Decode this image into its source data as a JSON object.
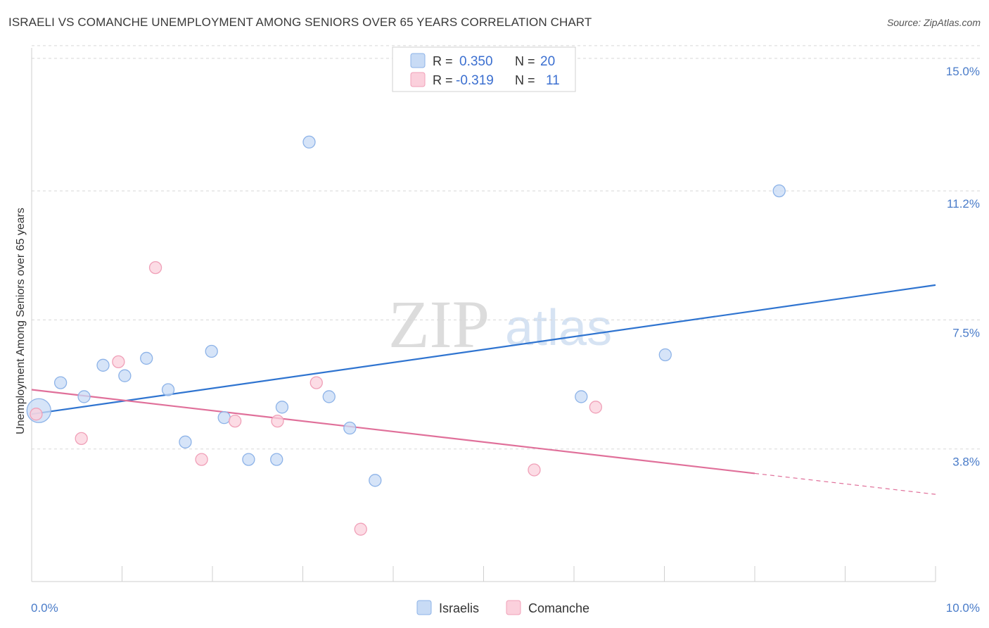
{
  "header": {
    "title": "ISRAELI VS COMANCHE UNEMPLOYMENT AMONG SENIORS OVER 65 YEARS CORRELATION CHART",
    "source": "Source: ZipAtlas.com"
  },
  "watermark": {
    "zip": "ZIP",
    "atlas": "atlas"
  },
  "colors": {
    "israelis_fill": "#c8dbf5",
    "israelis_stroke": "#8db3e8",
    "israelis_line": "#2f74d0",
    "comanche_fill": "#fbd0dc",
    "comanche_stroke": "#f0a0b8",
    "comanche_line": "#e0709a",
    "tick_text": "#4a7cc9",
    "grid": "#d8d8d8"
  },
  "legend": {
    "rows": [
      {
        "r_label": "R =",
        "r_value": "0.350",
        "n_label": "N =",
        "n_value": "20"
      },
      {
        "r_label": "R =",
        "r_value": "-0.319",
        "n_label": "N =",
        "n_value": "11"
      }
    ]
  },
  "chart_data": {
    "type": "scatter",
    "title": "ISRAELI VS COMANCHE UNEMPLOYMENT AMONG SENIORS OVER 65 YEARS CORRELATION CHART",
    "xlabel": "",
    "ylabel": "Unemployment Among Seniors over 65 years",
    "xlim": [
      0,
      10
    ],
    "ylim": [
      0,
      15.3
    ],
    "x_tick_labels": [
      "0.0%",
      "10.0%"
    ],
    "y_ticks": [
      3.8,
      7.5,
      11.2,
      15.0
    ],
    "y_tick_labels": [
      "3.8%",
      "7.5%",
      "11.2%",
      "15.0%"
    ],
    "grid": true,
    "series": [
      {
        "name": "Israelis",
        "points": [
          {
            "x": 0.08,
            "y": 4.9,
            "big": true
          },
          {
            "x": 0.32,
            "y": 5.7
          },
          {
            "x": 0.58,
            "y": 5.3
          },
          {
            "x": 0.79,
            "y": 6.2
          },
          {
            "x": 1.03,
            "y": 5.9
          },
          {
            "x": 1.27,
            "y": 6.4
          },
          {
            "x": 1.51,
            "y": 5.5
          },
          {
            "x": 1.7,
            "y": 4.0
          },
          {
            "x": 1.99,
            "y": 6.6
          },
          {
            "x": 2.13,
            "y": 4.7
          },
          {
            "x": 2.4,
            "y": 3.5
          },
          {
            "x": 2.71,
            "y": 3.5
          },
          {
            "x": 2.77,
            "y": 5.0
          },
          {
            "x": 3.07,
            "y": 12.6
          },
          {
            "x": 3.29,
            "y": 5.3
          },
          {
            "x": 3.52,
            "y": 4.4
          },
          {
            "x": 3.8,
            "y": 2.9
          },
          {
            "x": 6.08,
            "y": 5.3
          },
          {
            "x": 7.01,
            "y": 6.5
          },
          {
            "x": 8.27,
            "y": 11.2
          }
        ],
        "trend": {
          "x0": 0,
          "y0": 4.8,
          "x1": 10,
          "y1": 8.5
        }
      },
      {
        "name": "Comanche",
        "points": [
          {
            "x": 0.05,
            "y": 4.8
          },
          {
            "x": 0.55,
            "y": 4.1
          },
          {
            "x": 0.96,
            "y": 6.3
          },
          {
            "x": 1.37,
            "y": 9.0
          },
          {
            "x": 1.88,
            "y": 3.5
          },
          {
            "x": 2.25,
            "y": 4.6
          },
          {
            "x": 2.72,
            "y": 4.6
          },
          {
            "x": 3.15,
            "y": 5.7
          },
          {
            "x": 3.64,
            "y": 1.5
          },
          {
            "x": 5.56,
            "y": 3.2
          },
          {
            "x": 6.24,
            "y": 5.0
          }
        ],
        "trend": {
          "x0": 0,
          "y0": 5.5,
          "x1": 8.0,
          "y1": 3.1
        },
        "trend_dashed": {
          "x0": 8.0,
          "y0": 3.1,
          "x1": 10,
          "y1": 2.5
        }
      }
    ],
    "legend_labels": [
      "Israelis",
      "Comanche"
    ]
  }
}
